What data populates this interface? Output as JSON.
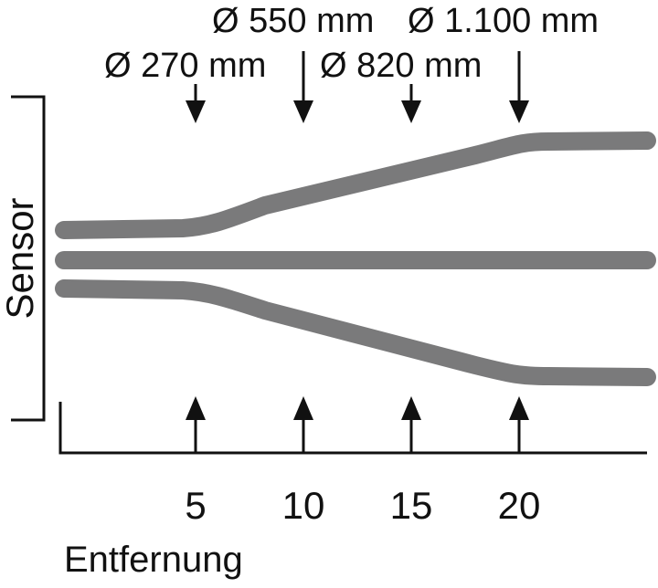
{
  "diameter_labels": [
    {
      "text": "Ø 270 mm",
      "distance": 5
    },
    {
      "text": "Ø 550 mm",
      "distance": 10
    },
    {
      "text": "Ø 820 mm",
      "distance": 15
    },
    {
      "text": "Ø 1.100 mm",
      "distance": 20
    }
  ],
  "axis": {
    "ticks": [
      "5",
      "10",
      "15",
      "20"
    ],
    "xlabel": "Entfernung"
  },
  "sensor_label": "Sensor",
  "colors": {
    "beam": "#7a7a7b",
    "ink": "#111111",
    "background": "#ffffff"
  }
}
